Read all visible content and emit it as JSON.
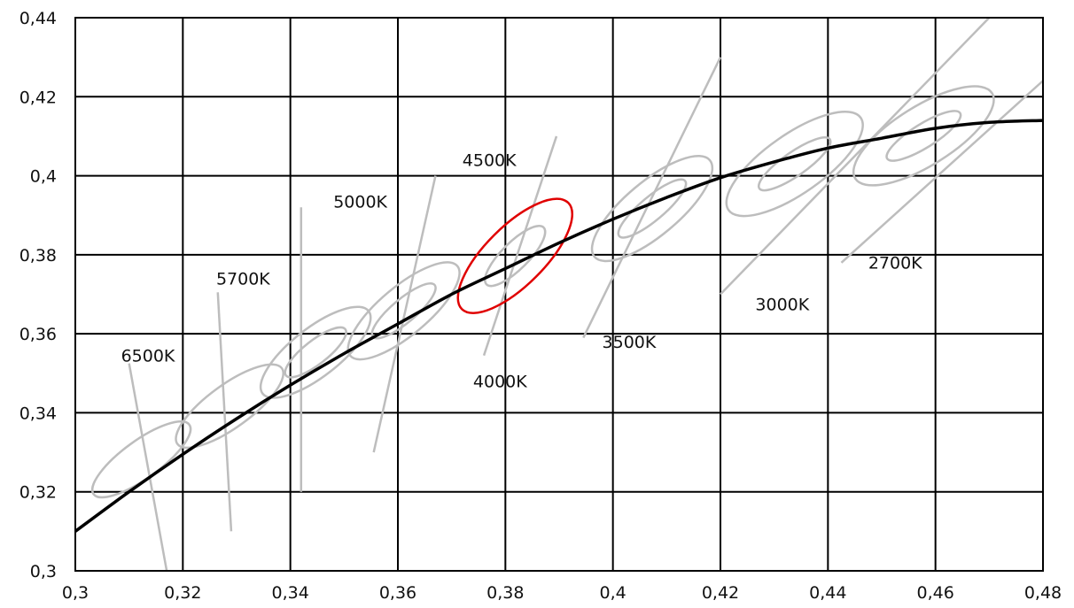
{
  "chart_data": {
    "type": "scatter",
    "title": "",
    "xlabel": "",
    "ylabel": "",
    "xlim": [
      0.3,
      0.48
    ],
    "ylim": [
      0.3,
      0.44
    ],
    "x_ticks": [
      {
        "value": 0.3,
        "label": "0,3"
      },
      {
        "value": 0.32,
        "label": "0,32"
      },
      {
        "value": 0.34,
        "label": "0,34"
      },
      {
        "value": 0.36,
        "label": "0,36"
      },
      {
        "value": 0.38,
        "label": "0,38"
      },
      {
        "value": 0.4,
        "label": "0,4"
      },
      {
        "value": 0.42,
        "label": "0,42"
      },
      {
        "value": 0.44,
        "label": "0,44"
      },
      {
        "value": 0.46,
        "label": "0,46"
      },
      {
        "value": 0.48,
        "label": "0,48"
      }
    ],
    "y_ticks": [
      {
        "value": 0.3,
        "label": "0,3"
      },
      {
        "value": 0.32,
        "label": "0,32"
      },
      {
        "value": 0.34,
        "label": "0,34"
      },
      {
        "value": 0.36,
        "label": "0,36"
      },
      {
        "value": 0.38,
        "label": "0,38"
      },
      {
        "value": 0.4,
        "label": "0,4"
      },
      {
        "value": 0.42,
        "label": "0,42"
      },
      {
        "value": 0.44,
        "label": "0,44"
      }
    ],
    "grid": true,
    "locus": {
      "color": "#000000",
      "points": [
        [
          0.3,
          0.31
        ],
        [
          0.31,
          0.32
        ],
        [
          0.32,
          0.3295
        ],
        [
          0.33,
          0.3385
        ],
        [
          0.34,
          0.347
        ],
        [
          0.35,
          0.355
        ],
        [
          0.36,
          0.3625
        ],
        [
          0.37,
          0.37
        ],
        [
          0.38,
          0.3765
        ],
        [
          0.39,
          0.383
        ],
        [
          0.4,
          0.389
        ],
        [
          0.41,
          0.3945
        ],
        [
          0.42,
          0.3995
        ],
        [
          0.43,
          0.4035
        ],
        [
          0.44,
          0.407
        ],
        [
          0.45,
          0.4095
        ],
        [
          0.46,
          0.412
        ],
        [
          0.47,
          0.4135
        ],
        [
          0.48,
          0.414
        ]
      ]
    },
    "cct_points": [
      {
        "label": "6500K",
        "center": [
          0.3123,
          0.3282
        ],
        "color": "#bdbdbd",
        "highlight": false,
        "isotherm": [
          [
            0.31,
            0.3525
          ],
          [
            0.317,
            0.3
          ]
        ],
        "label_pos": [
          0.3085,
          0.353
        ],
        "ellipses": [
          {
            "a": 0.011,
            "b": 0.0035,
            "angle_deg": 36
          }
        ]
      },
      {
        "label": "5700K",
        "center": [
          0.3287,
          0.3417
        ],
        "color": "#bdbdbd",
        "highlight": false,
        "isotherm": [
          [
            0.3265,
            0.3705
          ],
          [
            0.329,
            0.31
          ]
        ],
        "label_pos": [
          0.3262,
          0.3725
        ],
        "ellipses": [
          {
            "a": 0.012,
            "b": 0.004,
            "angle_deg": 36
          }
        ]
      },
      {
        "label": "5000K",
        "center": [
          0.3447,
          0.3553
        ],
        "color": "#bdbdbd",
        "highlight": false,
        "isotherm": [
          [
            0.342,
            0.392
          ],
          [
            0.342,
            0.32
          ]
        ],
        "label_pos": [
          0.348,
          0.392
        ],
        "ellipses": [
          {
            "a": 0.0125,
            "b": 0.0045,
            "angle_deg": 38
          },
          {
            "a": 0.007,
            "b": 0.0022,
            "angle_deg": 38
          }
        ]
      },
      {
        "label": "4500K",
        "center": [
          0.3611,
          0.3658
        ],
        "color": "#bdbdbd",
        "highlight": false,
        "isotherm": [
          [
            0.367,
            0.4
          ],
          [
            0.3555,
            0.33
          ]
        ],
        "label_pos": [
          0.372,
          0.4025
        ],
        "ellipses": [
          {
            "a": 0.013,
            "b": 0.0045,
            "angle_deg": 40
          },
          {
            "a": 0.0075,
            "b": 0.0022,
            "angle_deg": 40
          }
        ]
      },
      {
        "label": "4000K",
        "center": [
          0.3818,
          0.3797
        ],
        "color": "#e00000",
        "highlight": true,
        "isotherm": [
          [
            0.3895,
            0.41
          ],
          [
            0.376,
            0.3545
          ]
        ],
        "label_pos": [
          0.374,
          0.3465
        ],
        "ellipses": [
          {
            "a": 0.014,
            "b": 0.0055,
            "angle_deg": 45
          },
          {
            "a": 0.0075,
            "b": 0.0025,
            "angle_deg": 45
          }
        ]
      },
      {
        "label": "3500K",
        "center": [
          0.4073,
          0.3917
        ],
        "color": "#bdbdbd",
        "highlight": false,
        "isotherm": [
          [
            0.42,
            0.43
          ],
          [
            0.3945,
            0.359
          ]
        ],
        "label_pos": [
          0.398,
          0.3565
        ],
        "ellipses": [
          {
            "a": 0.014,
            "b": 0.005,
            "angle_deg": 40
          },
          {
            "a": 0.008,
            "b": 0.0022,
            "angle_deg": 40
          }
        ]
      },
      {
        "label": "3000K",
        "center": [
          0.4338,
          0.403
        ],
        "color": "#bdbdbd",
        "highlight": false,
        "isotherm": [
          [
            0.47,
            0.44
          ],
          [
            0.42,
            0.37
          ]
        ],
        "label_pos": [
          0.4265,
          0.366
        ],
        "ellipses": [
          {
            "a": 0.015,
            "b": 0.0055,
            "angle_deg": 35
          },
          {
            "a": 0.008,
            "b": 0.0022,
            "angle_deg": 35
          }
        ]
      },
      {
        "label": "2700K",
        "center": [
          0.4578,
          0.4101
        ],
        "color": "#bdbdbd",
        "highlight": false,
        "isotherm": [
          [
            0.493,
            0.44
          ],
          [
            0.4425,
            0.378
          ]
        ],
        "label_pos": [
          0.4475,
          0.3765
        ],
        "ellipses": [
          {
            "a": 0.015,
            "b": 0.0055,
            "angle_deg": 32
          },
          {
            "a": 0.008,
            "b": 0.0022,
            "angle_deg": 32
          }
        ]
      }
    ]
  }
}
